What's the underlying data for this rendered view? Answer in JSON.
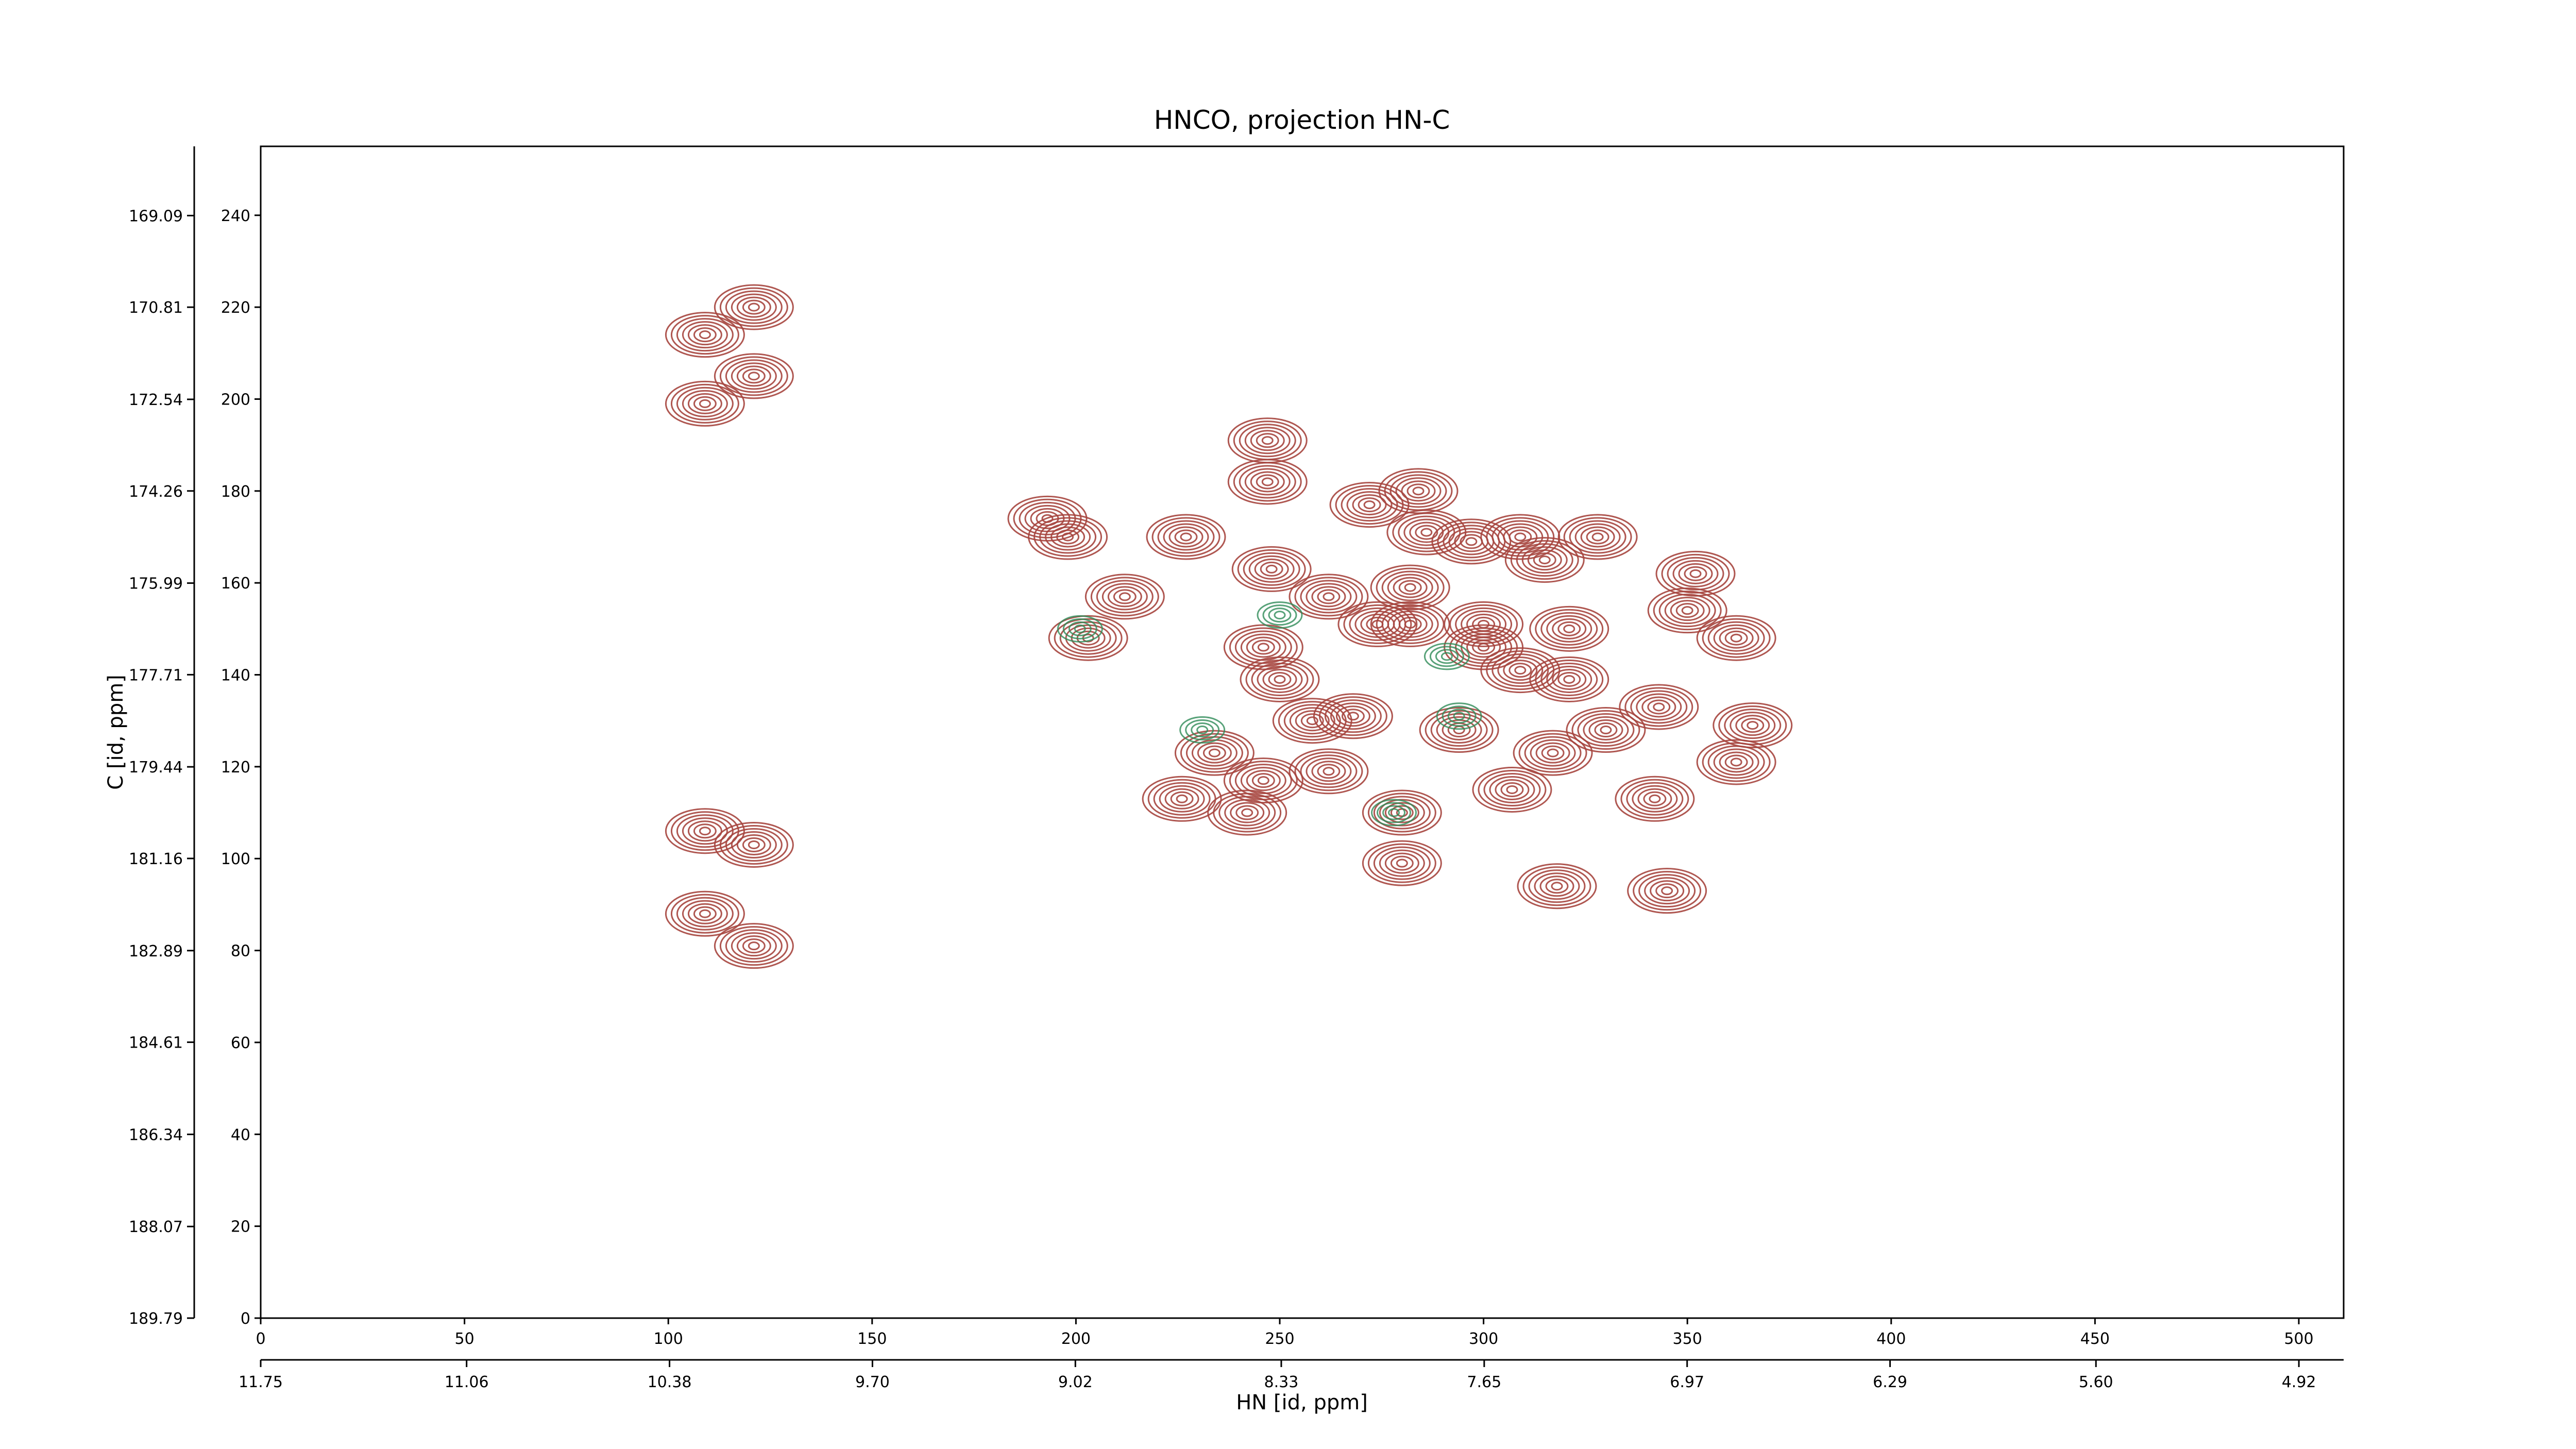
{
  "chart_data": {
    "type": "contour",
    "title": "HNCO, projection HN-C",
    "xlabel": "HN [id, ppm]",
    "ylabel": "C [id, ppm]",
    "xlim": [
      0,
      511
    ],
    "ylim": [
      0,
      255
    ],
    "xticks": [
      0,
      50,
      100,
      150,
      200,
      250,
      300,
      350,
      400,
      450,
      500
    ],
    "yticks": [
      0,
      20,
      40,
      60,
      80,
      100,
      120,
      140,
      160,
      180,
      200,
      220,
      240
    ],
    "x2lim": [
      11.75,
      4.77
    ],
    "x2ticks": [
      11.75,
      11.06,
      10.38,
      {
        "value": 9.7,
        "label": "9.70"
      },
      9.02,
      8.33,
      7.65,
      6.97,
      6.29,
      {
        "value": 5.6,
        "label": "5.60"
      },
      4.92
    ],
    "y2lim": [
      189.79,
      167.79
    ],
    "y2ticks": [
      189.79,
      188.07,
      186.34,
      184.61,
      182.89,
      181.16,
      179.44,
      177.71,
      175.99,
      174.26,
      172.54,
      170.81,
      169.09
    ],
    "series": [
      {
        "color": "#a6453e",
        "x": [
          109,
          121,
          109,
          121,
          109,
          109,
          121,
          121,
          193,
          198,
          227,
          247,
          247,
          248,
          212,
          203,
          226,
          234,
          246,
          242,
          250,
          258,
          268,
          272,
          284,
          286,
          262,
          274,
          282,
          282,
          300,
          300,
          309,
          321,
          321,
          297,
          309,
          315,
          328,
          294,
          317,
          330,
          307,
          280,
          318,
          345,
          343,
          352,
          350,
          362,
          366,
          362,
          342,
          262,
          280,
          246
        ],
        "values": [
          88,
          81,
          106,
          103,
          199,
          214,
          205,
          220,
          174,
          170,
          170,
          191,
          182,
          163,
          157,
          148,
          113,
          123,
          117,
          110,
          139,
          130,
          131,
          177,
          180,
          171,
          157,
          151,
          159,
          151,
          151,
          146,
          141,
          150,
          139,
          169,
          170,
          165,
          170,
          128,
          123,
          128,
          115,
          99,
          94,
          93,
          133,
          162,
          154,
          148,
          129,
          121,
          113,
          119,
          110,
          146
        ]
      },
      {
        "color": "#2e8b57",
        "x": [
          250,
          291,
          278,
          231,
          294,
          201
        ],
        "values": [
          153,
          144,
          110,
          128,
          131,
          150
        ]
      }
    ]
  }
}
